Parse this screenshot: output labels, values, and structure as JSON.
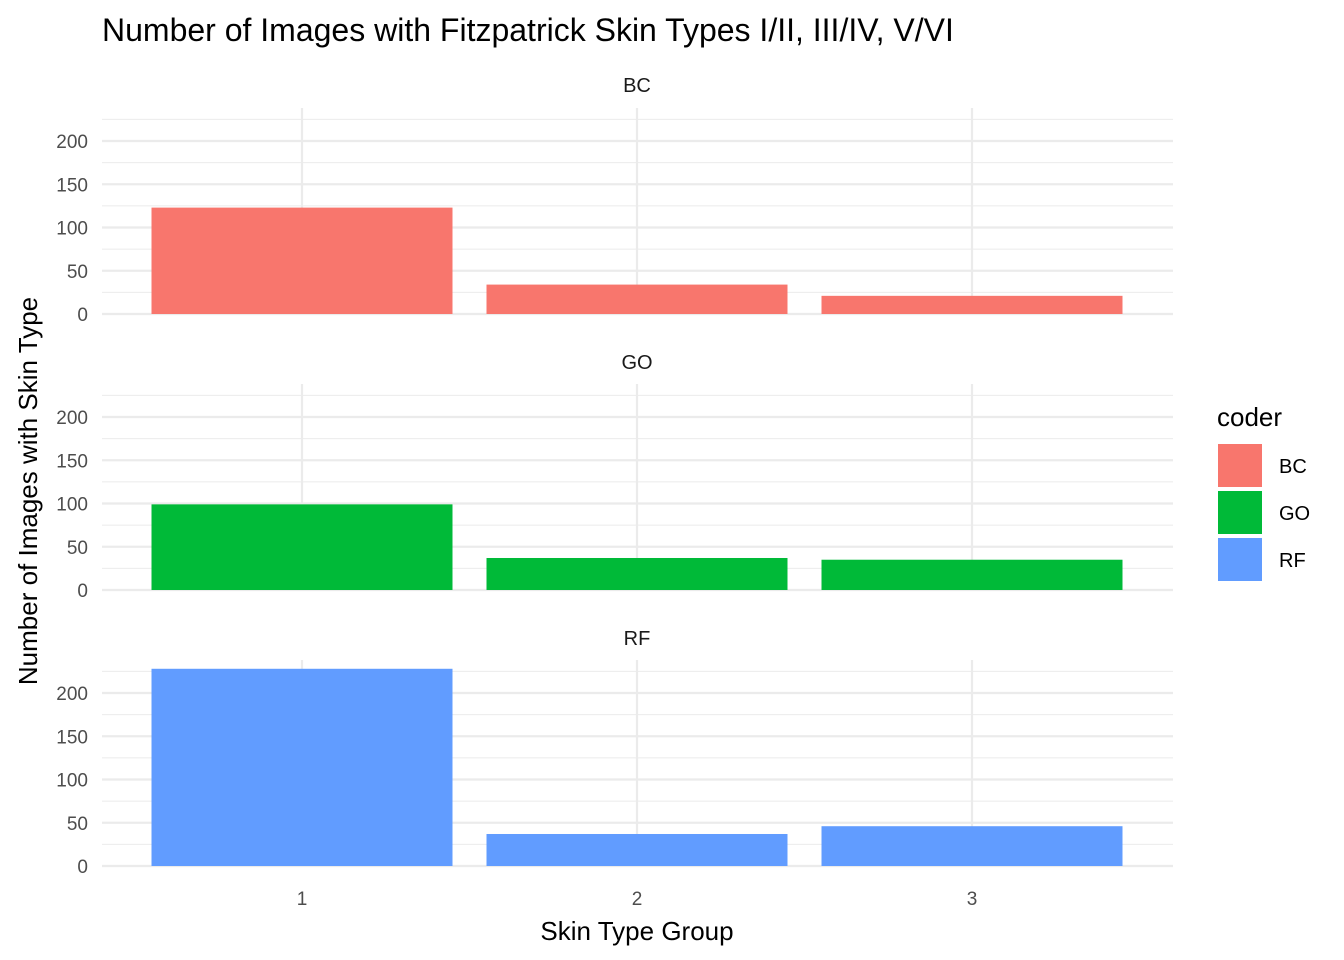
{
  "chart_data": {
    "type": "bar",
    "title": "Number of Images with Fitzpatrick Skin Types I/II, III/IV, V/VI",
    "xlabel": "Skin Type Group",
    "ylabel": "Number of Images with Skin Type",
    "categories": [
      "1",
      "2",
      "3"
    ],
    "y_ticks": [
      "0",
      "50",
      "100",
      "150",
      "200"
    ],
    "ylim": [
      0,
      230
    ],
    "grid": true,
    "legend": {
      "title": "coder",
      "position": "right",
      "entries": [
        "BC",
        "GO",
        "RF"
      ]
    },
    "series": [
      {
        "name": "BC",
        "color": "#F8766D",
        "values": [
          123,
          34,
          21
        ]
      },
      {
        "name": "GO",
        "color": "#00BA38",
        "values": [
          99,
          37,
          35
        ]
      },
      {
        "name": "RF",
        "color": "#619CFF",
        "values": [
          228,
          37,
          46
        ]
      }
    ]
  }
}
